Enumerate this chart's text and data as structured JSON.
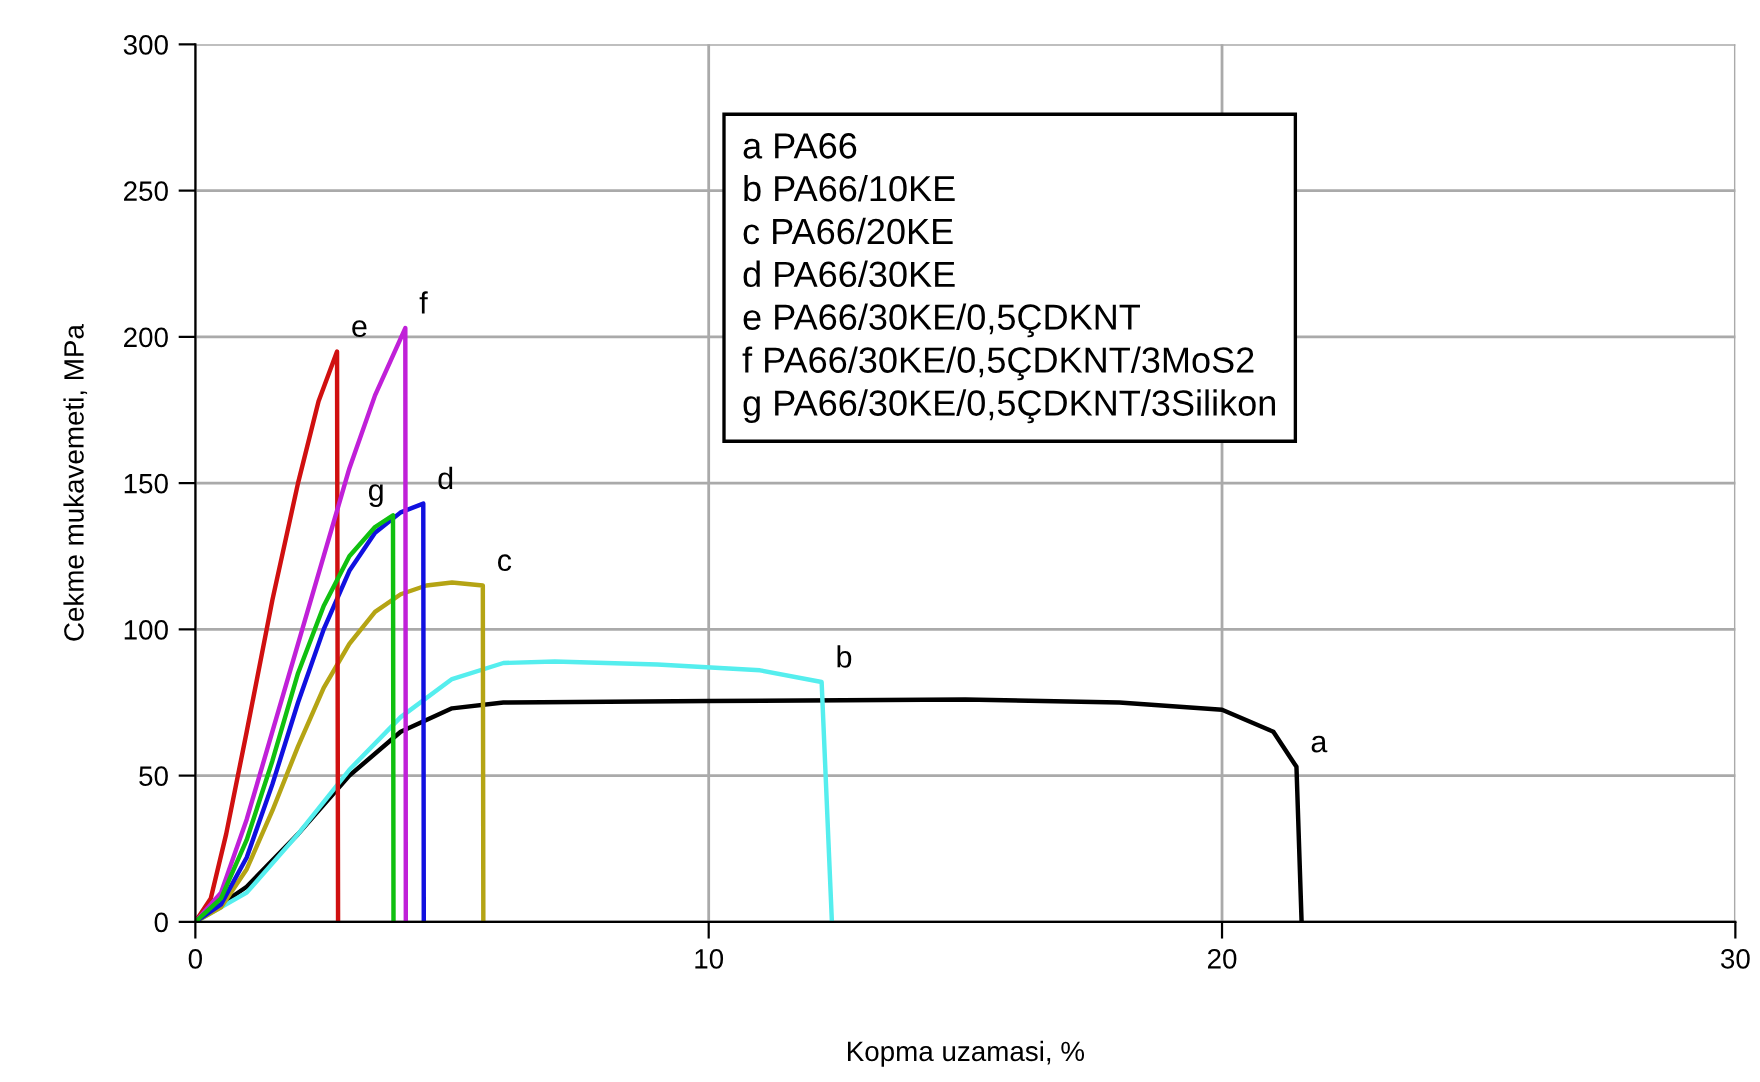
{
  "chart_data": {
    "type": "line",
    "xlabel": "Kopma uzamasi, %",
    "ylabel": "Cekme mukavemeti, MPa",
    "xlim": [
      0,
      30
    ],
    "xticks": [
      0,
      10,
      20,
      30
    ],
    "ylim": [
      0,
      300
    ],
    "yticks": [
      0,
      50,
      100,
      150,
      200,
      250,
      300
    ],
    "grid": true,
    "marker": "none",
    "line_style": "solid",
    "series": [
      {
        "name": "a",
        "color": "#000000",
        "x": [
          0,
          1,
          2,
          3,
          4,
          5,
          6,
          10,
          15,
          18,
          20,
          21,
          21.45,
          21.55
        ],
        "values": [
          0,
          12,
          30,
          50,
          65,
          73,
          75,
          75.5,
          76,
          75,
          72.5,
          65,
          53,
          0
        ]
      },
      {
        "name": "b",
        "color": "#55eeee",
        "x": [
          0,
          1,
          2,
          3,
          4,
          5,
          6,
          7,
          9,
          11,
          12.2,
          12.4
        ],
        "values": [
          0,
          10,
          30,
          52,
          70,
          83,
          88.5,
          89,
          88,
          86,
          82,
          0
        ]
      },
      {
        "name": "c",
        "color": "#b5a414",
        "x": [
          0,
          0.5,
          1,
          1.5,
          2,
          2.5,
          3,
          3.5,
          4,
          4.5,
          5,
          5.6,
          5.61
        ],
        "values": [
          0,
          5,
          18,
          38,
          60,
          80,
          95,
          106,
          112,
          115,
          116,
          115,
          0
        ]
      },
      {
        "name": "d",
        "color": "#1010e0",
        "x": [
          0,
          0.5,
          1,
          1.5,
          2,
          2.5,
          3,
          3.5,
          4,
          4.44,
          4.45
        ],
        "values": [
          0,
          6,
          22,
          47,
          75,
          100,
          120,
          133,
          140,
          143,
          0
        ]
      },
      {
        "name": "e",
        "color": "#d01010",
        "x": [
          0,
          0.3,
          0.6,
          1,
          1.5,
          2,
          2.4,
          2.76,
          2.78
        ],
        "values": [
          0,
          8,
          30,
          65,
          110,
          150,
          178,
          195,
          0
        ]
      },
      {
        "name": "f",
        "color": "#c020d8",
        "x": [
          0,
          0.5,
          1,
          1.5,
          2,
          2.5,
          3,
          3.5,
          4.09,
          4.1
        ],
        "values": [
          0,
          10,
          35,
          65,
          95,
          125,
          155,
          180,
          203,
          0
        ]
      },
      {
        "name": "g",
        "color": "#10c010",
        "x": [
          0,
          0.5,
          1,
          1.5,
          2,
          2.5,
          3,
          3.5,
          3.85,
          3.86
        ],
        "values": [
          0,
          8,
          28,
          55,
          85,
          108,
          125,
          135,
          139,
          0
        ]
      }
    ],
    "annotations": [
      "a PA66",
      "b PA66/10KE",
      "c PA66/20KE",
      "d PA66/30KE",
      "e PA66/30KE/0,5ÇDKNT",
      "f PA66/30KE/0,5ÇDKNT/3MoS2",
      "g PA66/30KE/0,5ÇDKNT/3Silikon"
    ]
  }
}
